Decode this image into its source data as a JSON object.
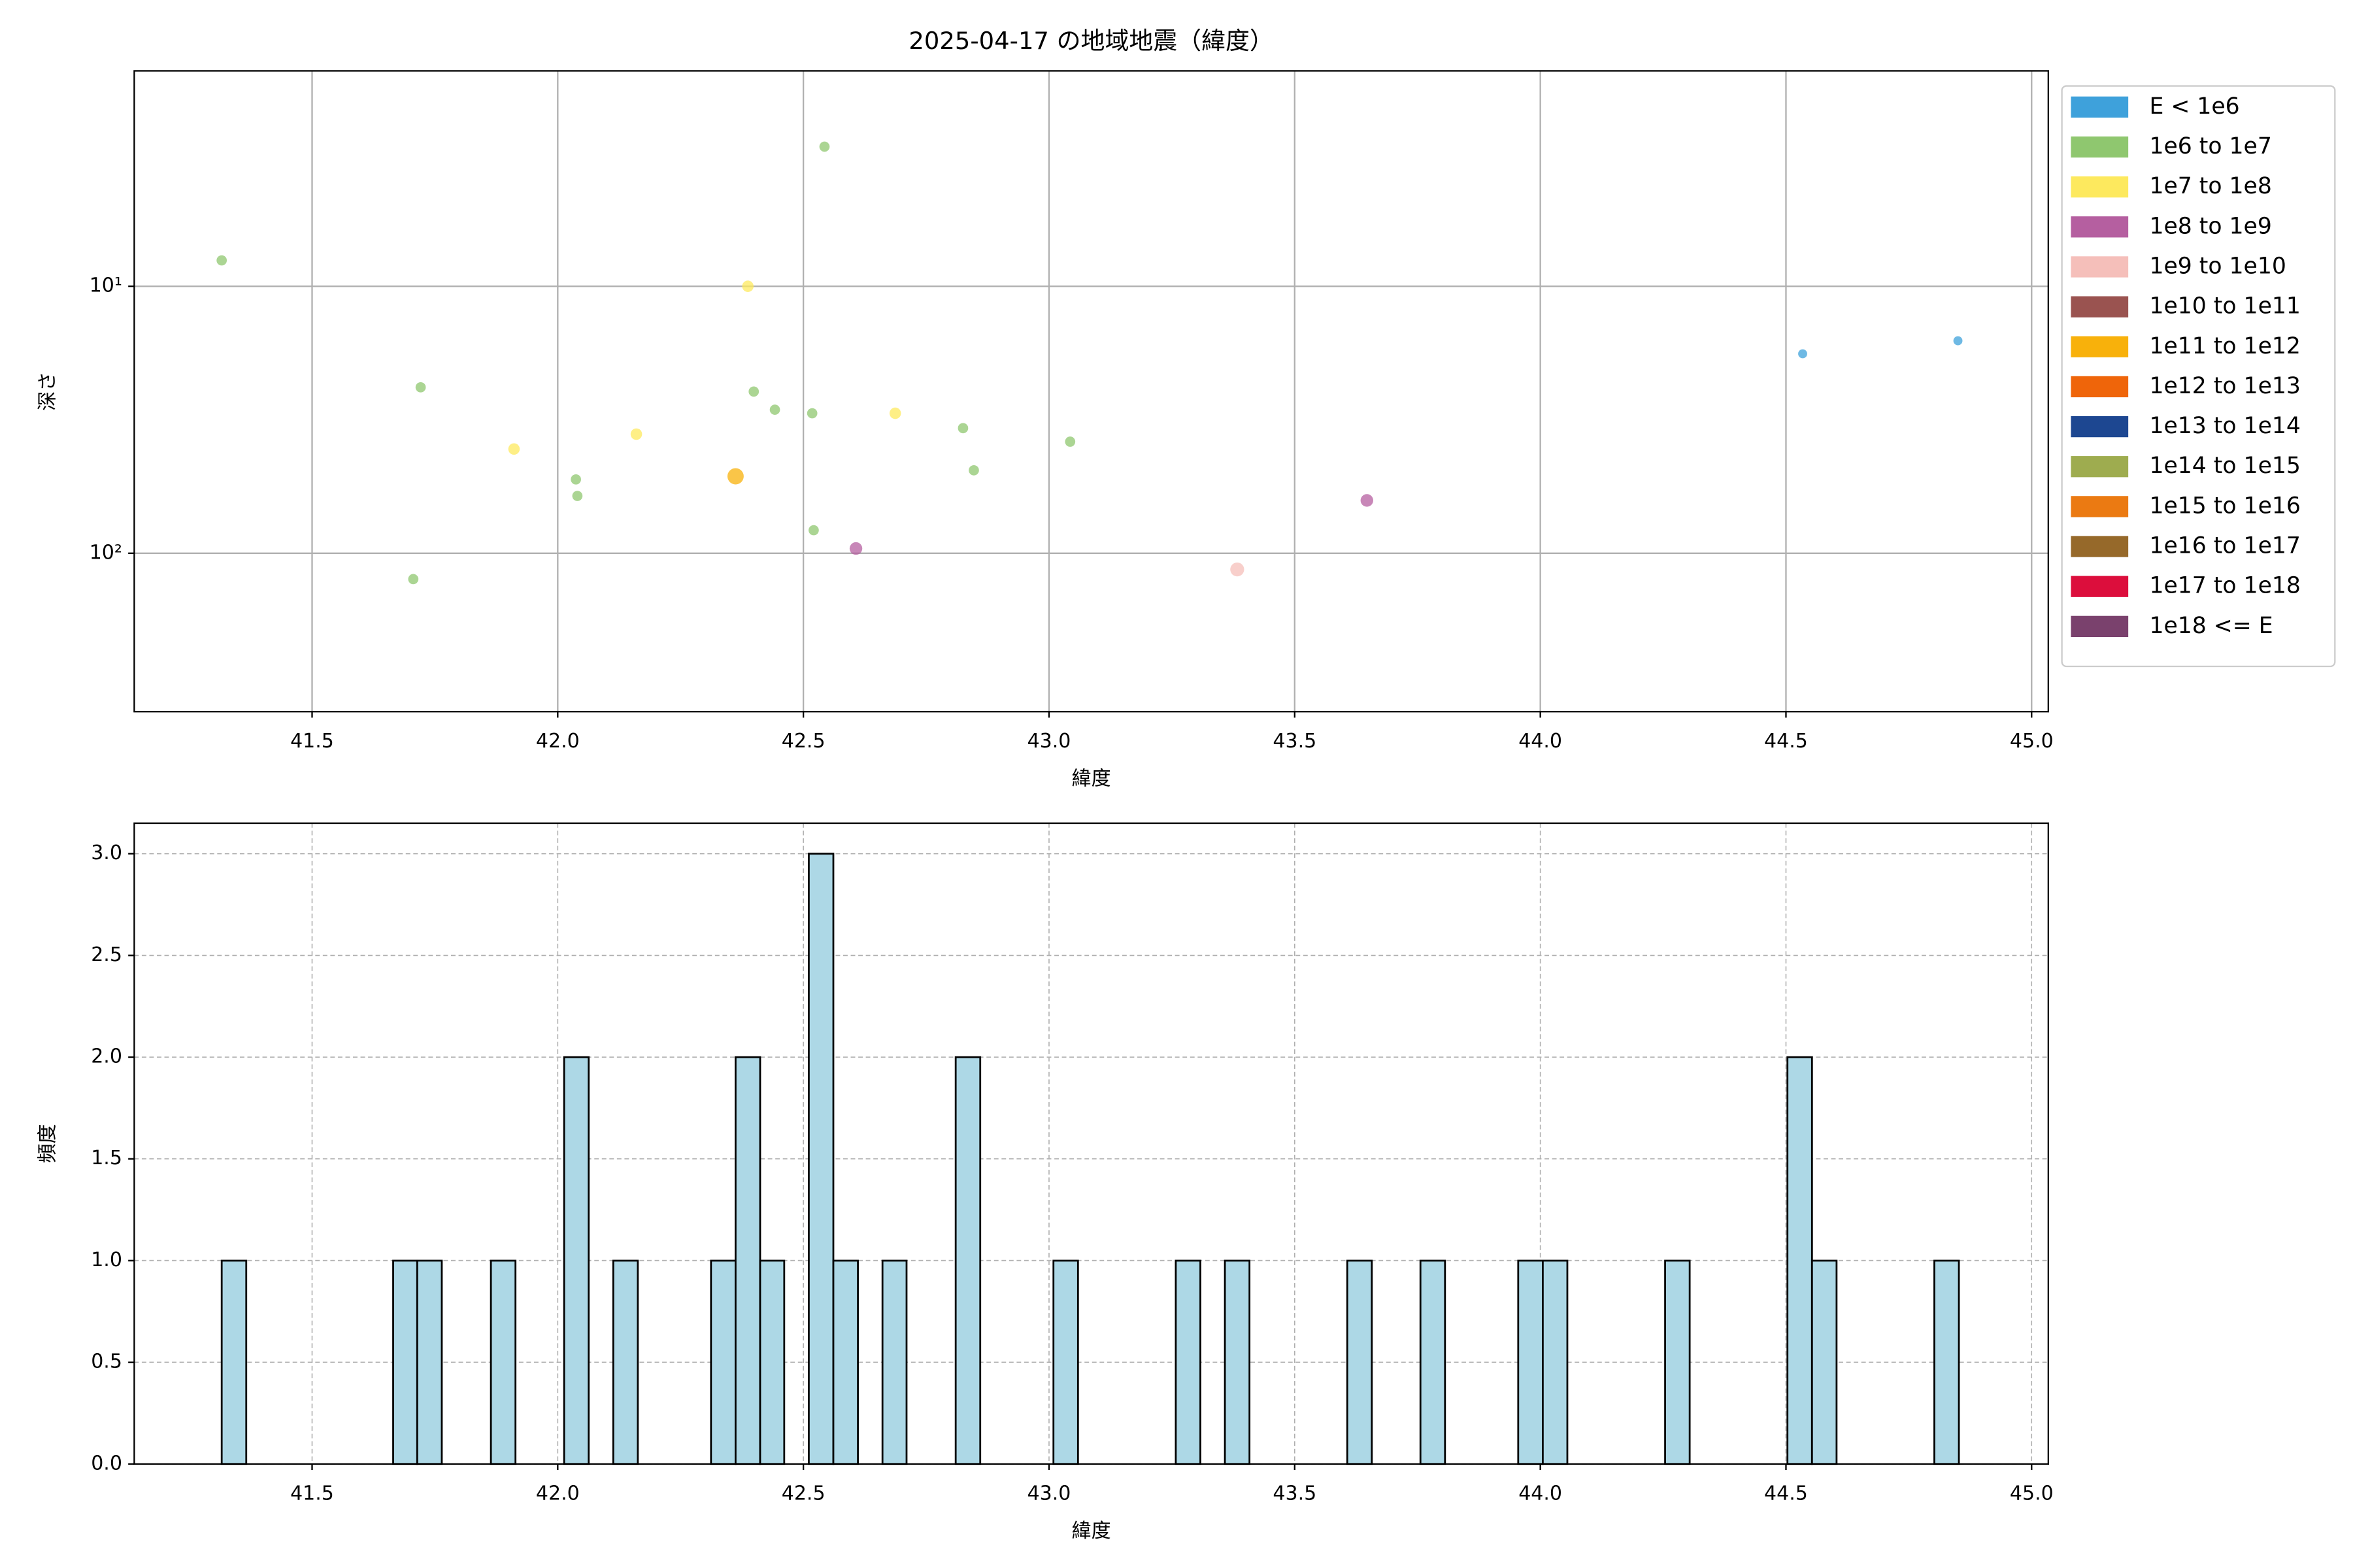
{
  "chart_data": [
    {
      "type": "scatter",
      "title": "2025-04-17 の地域地震（緯度）",
      "x_label": "緯度",
      "y_label": "深さ",
      "xlim": [
        41.138,
        45.034
      ],
      "xticks": [
        41.5,
        {
          "value": 42,
          "label": "42.0"
        },
        42.5,
        {
          "value": 43,
          "label": "43.0"
        },
        43.5,
        {
          "value": 44,
          "label": "44.0"
        },
        44.5,
        {
          "value": 45,
          "label": "45.0"
        }
      ],
      "ylim": [
        1.56,
        392
      ],
      "log_y": true,
      "y_inverted": true,
      "yticks": [
        {
          "value": 10,
          "label": "10¹"
        },
        {
          "value": 100,
          "label": "10²"
        }
      ],
      "grid": true,
      "legend": "outside upper right",
      "series": [
        {
          "name": "E < 1e6",
          "color": "#3ea1db",
          "x": [
            44.534,
            44.85
          ],
          "values": [
            17.9,
            16
          ]
        },
        {
          "name": "1e6 to 1e7",
          "color": "#8fc76f",
          "x": [
            41.316,
            41.721,
            41.706,
            42.037,
            42.04,
            42.399,
            42.442,
            42.543,
            42.518,
            42.521,
            42.825,
            42.847,
            43.043
          ],
          "values": [
            8.0,
            23.9,
            125,
            52.9,
            61,
            24.8,
            29,
            3.0,
            29.9,
            82,
            34,
            48.9,
            38.2
          ]
        },
        {
          "name": "1e7 to 1e8",
          "color": "#fde95e",
          "x": [
            41.911,
            42.16,
            42.387,
            42.687
          ],
          "values": [
            40.7,
            35.8,
            10,
            29.9
          ]
        },
        {
          "name": "1e8 to 1e9",
          "color": "#b55fa0",
          "x": [
            42.607,
            43.647
          ],
          "values": [
            96,
            63.4
          ]
        },
        {
          "name": "1e9 to 1e10",
          "color": "#f5bfba",
          "x": [
            43.383
          ],
          "values": [
            115
          ]
        },
        {
          "name": "1e10 to 1e11",
          "color": "#9a5350",
          "x": [],
          "values": []
        },
        {
          "name": "1e11 to 1e12",
          "color": "#f8b10b",
          "x": [
            42.362
          ],
          "values": [
            51.5
          ]
        },
        {
          "name": "1e12 to 1e13",
          "color": "#ef650a",
          "x": [],
          "values": []
        },
        {
          "name": "1e13 to 1e14",
          "color": "#1d4791",
          "x": [],
          "values": []
        },
        {
          "name": "1e14 to 1e15",
          "color": "#9eac4f",
          "x": [],
          "values": []
        },
        {
          "name": "1e15 to 1e16",
          "color": "#eb7a12",
          "x": [],
          "values": []
        },
        {
          "name": "1e16 to 1e17",
          "color": "#96692a",
          "x": [],
          "values": []
        },
        {
          "name": "1e17 to 1e18",
          "color": "#dc0e3c",
          "x": [],
          "values": []
        },
        {
          "name": "1e18 <= E",
          "color": "#7a416d",
          "x": [],
          "values": []
        }
      ]
    },
    {
      "type": "histogram",
      "x_label": "緯度",
      "y_label": "頻度",
      "color": "#add8e6",
      "edgecolor": "#000000",
      "xlim": [
        41.138,
        45.034
      ],
      "xticks": [
        41.5,
        {
          "value": 42,
          "label": "42.0"
        },
        42.5,
        {
          "value": 43,
          "label": "43.0"
        },
        43.5,
        {
          "value": 44,
          "label": "44.0"
        },
        44.5,
        {
          "value": 45,
          "label": "45.0"
        }
      ],
      "ylim": [
        0,
        3.15
      ],
      "yticks": [
        {
          "value": 0,
          "label": "0.0"
        },
        0.5,
        {
          "value": 1,
          "label": "1.0"
        },
        1.5,
        {
          "value": 2,
          "label": "2.0"
        },
        2.5,
        {
          "value": 3,
          "label": "3.0"
        }
      ],
      "grid": true,
      "grid_style": "dashed",
      "bins": [
        41.316,
        41.366,
        41.416,
        41.465,
        41.515,
        41.565,
        41.615,
        41.665,
        41.714,
        41.764,
        41.814,
        41.864,
        41.914,
        41.963,
        42.013,
        42.063,
        42.113,
        42.163,
        42.212,
        42.262,
        42.312,
        42.362,
        42.412,
        42.461,
        42.511,
        42.561,
        42.611,
        42.661,
        42.71,
        42.76,
        42.81,
        42.86,
        42.91,
        42.959,
        43.009,
        43.059,
        43.109,
        43.159,
        43.208,
        43.258,
        43.308,
        43.358,
        43.408,
        43.457,
        43.507,
        43.557,
        43.607,
        43.657,
        43.706,
        43.756,
        43.806,
        43.856,
        43.906,
        43.955,
        44.005,
        44.055,
        44.105,
        44.155,
        44.204,
        44.254,
        44.304,
        44.354,
        44.404,
        44.453,
        44.503,
        44.553,
        44.603,
        44.653,
        44.702,
        44.752,
        44.802,
        44.852
      ],
      "values": [
        1,
        0,
        0,
        0,
        0,
        0,
        0,
        1,
        1,
        0,
        0,
        1,
        0,
        0,
        2,
        0,
        1,
        0,
        0,
        0,
        1,
        2,
        1,
        0,
        3,
        1,
        0,
        1,
        0,
        0,
        2,
        0,
        0,
        0,
        1,
        0,
        0,
        0,
        0,
        1,
        0,
        1,
        0,
        0,
        0,
        0,
        1,
        0,
        0,
        1,
        0,
        0,
        0,
        1,
        1,
        0,
        0,
        0,
        0,
        1,
        0,
        0,
        0,
        0,
        2,
        1,
        0,
        0,
        0,
        0,
        1
      ]
    }
  ]
}
